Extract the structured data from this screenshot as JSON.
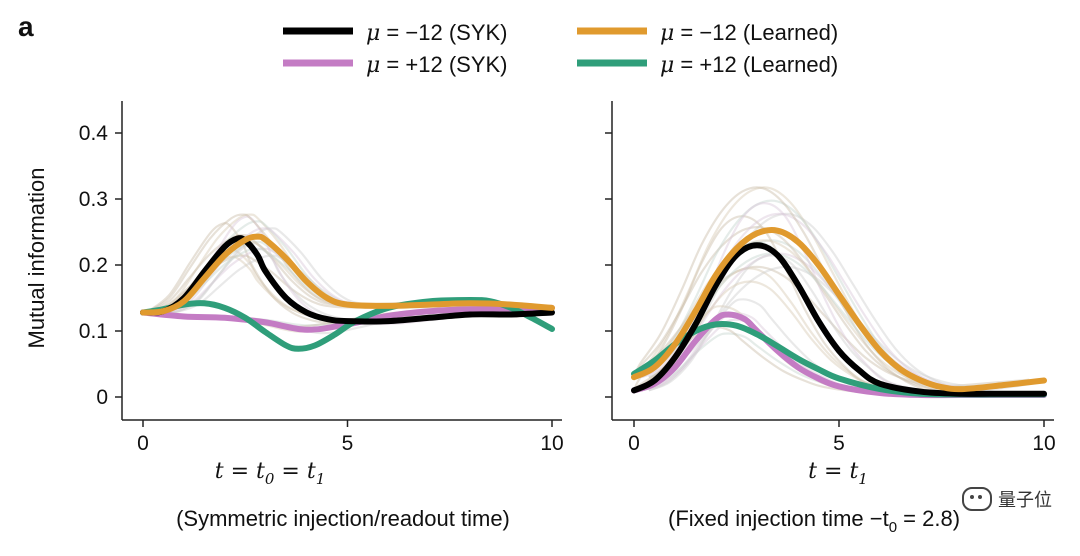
{
  "panel_letter": "a",
  "legend": [
    {
      "mu": "μ",
      "text": " = −12 (SYK)",
      "color": "#000000"
    },
    {
      "mu": "μ",
      "text": " = −12 (Learned)",
      "color": "#E09A2E"
    },
    {
      "mu": "μ",
      "text": " = +12 (SYK)",
      "color": "#C47CC4"
    },
    {
      "mu": "μ",
      "text": " = +12 (Learned)",
      "color": "#2F9E7A"
    }
  ],
  "ylabel": "Mutual information",
  "watermark": "量子位",
  "chart_data": [
    {
      "type": "line",
      "panel": "left",
      "xlabel": {
        "t": "t",
        "eq1": " = ",
        "t0": "t",
        "sub0": "0",
        "eq2": " = ",
        "t1": "t",
        "sub1": "1"
      },
      "caption": "(Symmetric injection/readout time)",
      "xlim": [
        0,
        10
      ],
      "ylim": [
        -0.02,
        0.45
      ],
      "xticks": [
        "0",
        "5",
        "10"
      ],
      "yticks": [
        "0",
        "0.1",
        "0.2",
        "0.3",
        "0.4"
      ],
      "series": [
        {
          "name": "μ = −12 (SYK)",
          "color": "#000000",
          "x": [
            0,
            0.5,
            1,
            1.5,
            2,
            2.3,
            2.5,
            2.8,
            3,
            3.5,
            4,
            4.5,
            5,
            6,
            7,
            8,
            9,
            10
          ],
          "y": [
            0.128,
            0.13,
            0.15,
            0.19,
            0.228,
            0.24,
            0.237,
            0.215,
            0.19,
            0.15,
            0.128,
            0.118,
            0.115,
            0.115,
            0.12,
            0.125,
            0.125,
            0.128
          ]
        },
        {
          "name": "μ = −12 (Learned)",
          "color": "#E09A2E",
          "x": [
            0,
            0.5,
            1,
            1.5,
            2,
            2.5,
            2.8,
            3,
            3.5,
            4,
            4.5,
            5,
            6,
            7,
            8,
            9,
            10
          ],
          "y": [
            0.128,
            0.13,
            0.145,
            0.18,
            0.215,
            0.238,
            0.243,
            0.238,
            0.21,
            0.175,
            0.15,
            0.14,
            0.138,
            0.14,
            0.142,
            0.14,
            0.135
          ]
        },
        {
          "name": "μ = +12 (SYK)",
          "color": "#C47CC4",
          "x": [
            0,
            1,
            2,
            3,
            4,
            5,
            6,
            7,
            8,
            9,
            10
          ],
          "y": [
            0.128,
            0.122,
            0.12,
            0.113,
            0.102,
            0.11,
            0.123,
            0.13,
            0.133,
            0.133,
            0.135
          ]
        },
        {
          "name": "μ = +12 (Learned)",
          "color": "#2F9E7A",
          "x": [
            0,
            0.5,
            1,
            1.5,
            2,
            2.5,
            3,
            3.5,
            3.8,
            4.2,
            4.7,
            5.2,
            6,
            7,
            8,
            8.5,
            9,
            9.5,
            10
          ],
          "y": [
            0.128,
            0.133,
            0.14,
            0.142,
            0.135,
            0.12,
            0.098,
            0.078,
            0.073,
            0.078,
            0.095,
            0.115,
            0.135,
            0.145,
            0.147,
            0.145,
            0.135,
            0.12,
            0.103
          ]
        }
      ]
    },
    {
      "type": "line",
      "panel": "right",
      "xlabel": {
        "t": "t",
        "eq1": " = ",
        "t1": "t",
        "sub1": "1"
      },
      "caption": "(Fixed injection time −t",
      "caption_sub": "0",
      "caption_tail": " = 2.8)",
      "xlim": [
        0,
        10
      ],
      "ylim": [
        -0.02,
        0.45
      ],
      "xticks": [
        "0",
        "5",
        "10"
      ],
      "yticks": [
        "0",
        "0.1",
        "0.2",
        "0.3",
        "0.4"
      ],
      "series": [
        {
          "name": "μ = −12 (SYK)",
          "color": "#000000",
          "x": [
            0,
            0.5,
            1,
            1.5,
            2,
            2.5,
            3,
            3.5,
            4,
            4.5,
            5,
            5.5,
            6,
            7,
            8,
            9,
            10
          ],
          "y": [
            0.01,
            0.025,
            0.06,
            0.11,
            0.17,
            0.215,
            0.23,
            0.215,
            0.17,
            0.115,
            0.07,
            0.04,
            0.02,
            0.008,
            0.005,
            0.005,
            0.005
          ]
        },
        {
          "name": "μ = −12 (Learned)",
          "color": "#E09A2E",
          "x": [
            0,
            0.5,
            1,
            1.5,
            2,
            2.5,
            3,
            3.5,
            4,
            4.5,
            5,
            5.5,
            6,
            6.5,
            7,
            7.5,
            8,
            9,
            10
          ],
          "y": [
            0.03,
            0.045,
            0.08,
            0.13,
            0.185,
            0.225,
            0.248,
            0.252,
            0.235,
            0.2,
            0.155,
            0.11,
            0.07,
            0.042,
            0.025,
            0.015,
            0.012,
            0.018,
            0.025
          ]
        },
        {
          "name": "μ = +12 (SYK)",
          "color": "#C47CC4",
          "x": [
            0,
            0.5,
            1,
            1.5,
            2,
            2.3,
            2.7,
            3,
            3.5,
            4,
            4.5,
            5,
            6,
            7,
            8,
            10
          ],
          "y": [
            0.01,
            0.02,
            0.045,
            0.085,
            0.118,
            0.125,
            0.118,
            0.1,
            0.07,
            0.045,
            0.028,
            0.016,
            0.006,
            0.003,
            0.003,
            0.003
          ]
        },
        {
          "name": "μ = +12 (Learned)",
          "color": "#2F9E7A",
          "x": [
            0,
            0.5,
            1,
            1.5,
            2,
            2.5,
            3,
            3.5,
            4,
            4.5,
            5,
            6,
            7,
            8,
            9,
            10
          ],
          "y": [
            0.035,
            0.055,
            0.08,
            0.1,
            0.11,
            0.108,
            0.095,
            0.077,
            0.058,
            0.042,
            0.028,
            0.012,
            0.005,
            0.004,
            0.004,
            0.004
          ]
        }
      ]
    }
  ]
}
